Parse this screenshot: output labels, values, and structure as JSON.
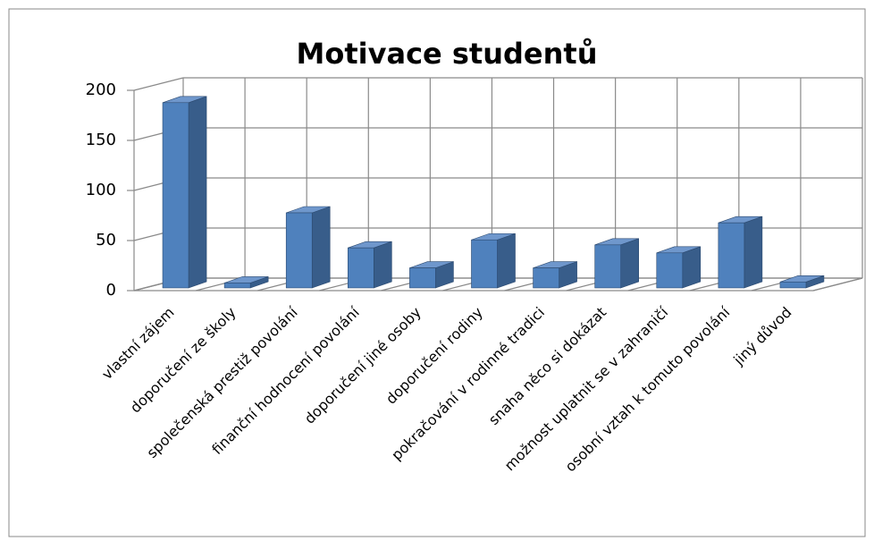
{
  "chart_data": {
    "type": "bar3d",
    "title": "Motivace studentů",
    "categories": [
      "vlastní zájem",
      "doporučení ze školy",
      "společenská prestiž povolání",
      "finanční hodnocení povolání",
      "doporučení jiné osoby",
      "doporučení rodiny",
      "pokračování v rodinné tradici",
      "snaha něco si dokázat",
      "možnost uplatnit se v zahraničí",
      "osobní vztah k tomuto povolání",
      "jiný důvod"
    ],
    "values": [
      185,
      5,
      75,
      40,
      20,
      48,
      20,
      43,
      35,
      65,
      6
    ],
    "color": "#4f81bd",
    "ylim": [
      0,
      200
    ],
    "yticks": [
      0,
      50,
      100,
      150,
      200
    ],
    "grid": true
  }
}
